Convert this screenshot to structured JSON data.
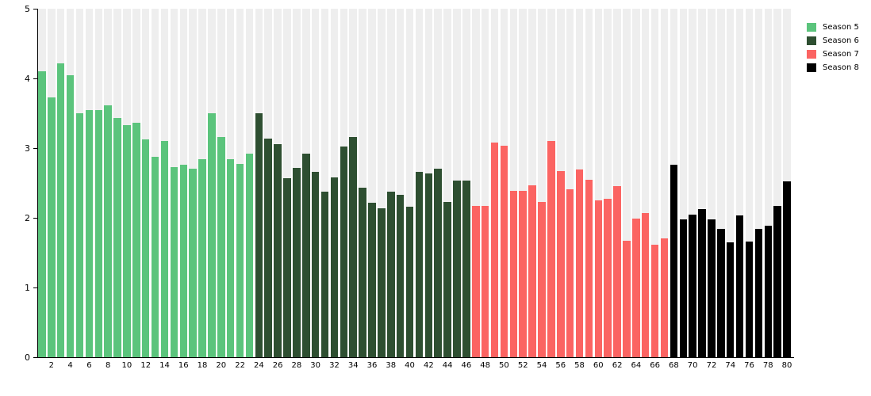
{
  "chart_data": {
    "type": "bar",
    "title": "",
    "xlabel": "",
    "ylabel": "",
    "ylim": [
      0,
      5
    ],
    "yticks": [
      0,
      1,
      2,
      3,
      4,
      5
    ],
    "xticks": [
      2,
      4,
      6,
      8,
      10,
      12,
      14,
      16,
      18,
      20,
      22,
      24,
      26,
      28,
      30,
      32,
      34,
      36,
      38,
      40,
      42,
      44,
      46,
      48,
      50,
      52,
      54,
      56,
      58,
      60,
      62,
      64,
      66,
      68,
      70,
      72,
      74,
      76,
      78,
      80
    ],
    "x_unit": "episode-number",
    "grid": "light-gray-column-stripes-full-height",
    "legend_position": "top-right-outside",
    "series": [
      {
        "name": "Season 5",
        "color": "#5BC47C",
        "x_range": [
          1,
          23
        ],
        "values": [
          4.1,
          3.73,
          4.22,
          4.04,
          3.5,
          3.54,
          3.55,
          3.61,
          3.43,
          3.33,
          3.36,
          3.12,
          2.88,
          3.1,
          2.73,
          2.76,
          2.71,
          2.84,
          3.5,
          3.16,
          2.84,
          2.77,
          2.92
        ]
      },
      {
        "name": "Season 6",
        "color": "#2E4F31",
        "x_range": [
          24,
          46
        ],
        "values": [
          3.5,
          3.14,
          3.06,
          2.57,
          2.72,
          2.92,
          2.66,
          2.38,
          2.58,
          3.02,
          3.16,
          2.43,
          2.22,
          2.14,
          2.37,
          2.33,
          2.16,
          2.66,
          2.64,
          2.7,
          2.23,
          2.53,
          2.53
        ]
      },
      {
        "name": "Season 7",
        "color": "#FB6462",
        "x_range": [
          47,
          67
        ],
        "values": [
          2.17,
          2.17,
          3.08,
          3.03,
          2.39,
          2.39,
          2.47,
          2.23,
          3.1,
          2.67,
          2.41,
          2.69,
          2.54,
          2.25,
          2.27,
          2.45,
          1.67,
          1.99,
          2.07,
          1.61,
          1.7
        ]
      },
      {
        "name": "Season 8",
        "color": "#000000",
        "x_range": [
          68,
          80
        ],
        "values": [
          2.76,
          1.98,
          2.05,
          2.13,
          1.98,
          1.84,
          1.65,
          2.03,
          1.66,
          1.84,
          1.89,
          2.17,
          2.52
        ]
      }
    ]
  },
  "legend": {
    "items": [
      {
        "label": "Season 5",
        "color": "#5BC47C"
      },
      {
        "label": "Season 6",
        "color": "#2E4F31"
      },
      {
        "label": "Season 7",
        "color": "#FB6462"
      },
      {
        "label": "Season 8",
        "color": "#000000"
      }
    ]
  },
  "colors": {
    "background": "#ffffff",
    "stripe": "#eeeeee",
    "axis": "#000000",
    "text": "#000000"
  }
}
